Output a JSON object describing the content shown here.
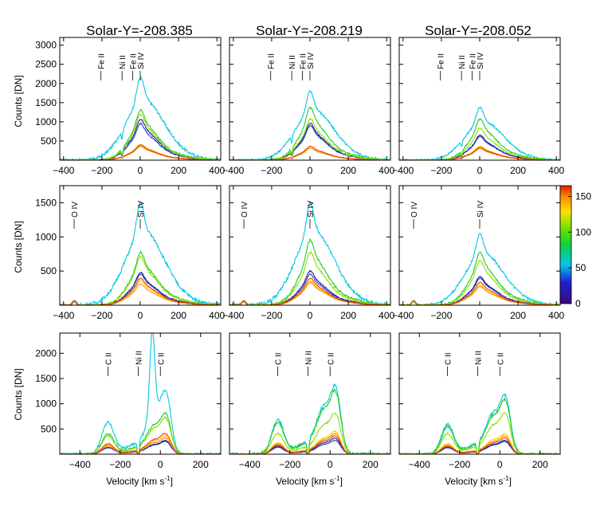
{
  "figure": {
    "column_titles": [
      "Solar-Y=-208.385",
      "Solar-Y=-208.219",
      "Solar-Y=-208.052"
    ],
    "ylabel": "Counts [DN]",
    "xlabel": "Velocity [km s",
    "xlabel_sup": "-1",
    "xlabel_end": "]",
    "colorbar": {
      "ticks": [
        "0",
        "50",
        "100",
        "150"
      ],
      "min": 0,
      "max": 165,
      "colormap": "rainbow (violet-blue-cyan-green-yellow-orange-red)"
    }
  },
  "chart_data": [
    {
      "type": "line",
      "row": 0,
      "col": 0,
      "xlim": [
        -420,
        420
      ],
      "ylim": [
        0,
        3200
      ],
      "xticks": [
        -400,
        -200,
        0,
        200,
        400
      ],
      "yticks": [
        500,
        1000,
        1500,
        2000,
        2500,
        3000
      ],
      "show_yticklabels": true,
      "line_labels": [
        {
          "text": "Fe II",
          "x": -205
        },
        {
          "text": "Ni II",
          "x": -95
        },
        {
          "text": "Fe II",
          "x": -40
        },
        {
          "text": "Si IV",
          "x": 0
        }
      ]
    },
    {
      "type": "line",
      "row": 0,
      "col": 1,
      "xlim": [
        -420,
        420
      ],
      "ylim": [
        0,
        3200
      ],
      "xticks": [
        -400,
        -200,
        0,
        200,
        400
      ],
      "yticks": [
        500,
        1000,
        1500,
        2000,
        2500,
        3000
      ],
      "show_yticklabels": false,
      "line_labels": [
        {
          "text": "Fe II",
          "x": -205
        },
        {
          "text": "Ni II",
          "x": -95
        },
        {
          "text": "Fe II",
          "x": -40
        },
        {
          "text": "Si IV",
          "x": 0
        }
      ]
    },
    {
      "type": "line",
      "row": 0,
      "col": 2,
      "xlim": [
        -420,
        420
      ],
      "ylim": [
        0,
        3200
      ],
      "xticks": [
        -400,
        -200,
        0,
        200,
        400
      ],
      "yticks": [
        500,
        1000,
        1500,
        2000,
        2500,
        3000
      ],
      "show_yticklabels": false,
      "line_labels": [
        {
          "text": "Fe II",
          "x": -205
        },
        {
          "text": "Ni II",
          "x": -95
        },
        {
          "text": "Fe II",
          "x": -40
        },
        {
          "text": "Si IV",
          "x": 0
        }
      ]
    },
    {
      "type": "line",
      "row": 1,
      "col": 0,
      "xlim": [
        -420,
        420
      ],
      "ylim": [
        0,
        1750
      ],
      "xticks": [
        -400,
        -200,
        0,
        200,
        400
      ],
      "yticks": [
        500,
        1000,
        1500
      ],
      "show_yticklabels": true,
      "line_labels": [
        {
          "text": "O IV",
          "x": -345
        },
        {
          "text": "Si IV",
          "x": 0
        }
      ]
    },
    {
      "type": "line",
      "row": 1,
      "col": 1,
      "xlim": [
        -420,
        420
      ],
      "ylim": [
        0,
        1750
      ],
      "xticks": [
        -400,
        -200,
        0,
        200,
        400
      ],
      "yticks": [
        500,
        1000,
        1500
      ],
      "show_yticklabels": false,
      "line_labels": [
        {
          "text": "O IV",
          "x": -345
        },
        {
          "text": "Si IV",
          "x": 0
        }
      ]
    },
    {
      "type": "line",
      "row": 1,
      "col": 2,
      "xlim": [
        -420,
        420
      ],
      "ylim": [
        0,
        1750
      ],
      "xticks": [
        -400,
        -200,
        0,
        200,
        400
      ],
      "yticks": [
        500,
        1000,
        1500
      ],
      "show_yticklabels": false,
      "line_labels": [
        {
          "text": "O IV",
          "x": -345
        },
        {
          "text": "Si IV",
          "x": 0
        }
      ]
    },
    {
      "type": "line",
      "row": 2,
      "col": 0,
      "xlim": [
        -500,
        300
      ],
      "ylim": [
        0,
        2400
      ],
      "xticks": [
        -400,
        -200,
        0,
        200
      ],
      "yticks": [
        500,
        1000,
        1500,
        2000
      ],
      "show_yticklabels": true,
      "line_labels": [
        {
          "text": "C II",
          "x": -260
        },
        {
          "text": "Ni II",
          "x": -110
        },
        {
          "text": "C II",
          "x": 0
        }
      ]
    },
    {
      "type": "line",
      "row": 2,
      "col": 1,
      "xlim": [
        -500,
        300
      ],
      "ylim": [
        0,
        2400
      ],
      "xticks": [
        -400,
        -200,
        0,
        200
      ],
      "yticks": [
        500,
        1000,
        1500,
        2000
      ],
      "show_yticklabels": false,
      "line_labels": [
        {
          "text": "C II",
          "x": -260
        },
        {
          "text": "Ni II",
          "x": -110
        },
        {
          "text": "C II",
          "x": 0
        }
      ]
    },
    {
      "type": "line",
      "row": 2,
      "col": 2,
      "xlim": [
        -500,
        300
      ],
      "ylim": [
        0,
        2400
      ],
      "xticks": [
        -400,
        -200,
        0,
        200
      ],
      "yticks": [
        500,
        1000,
        1500,
        2000
      ],
      "show_yticklabels": false,
      "line_labels": [
        {
          "text": "C II",
          "x": -260
        },
        {
          "text": "Ni II",
          "x": -110
        },
        {
          "text": "C II",
          "x": 0
        }
      ]
    }
  ],
  "series_colors": [
    "#2a1a8a",
    "#1c3fc7",
    "#00c8e0",
    "#22cc22",
    "#88e000",
    "#ffd000",
    "#ff8c00",
    "#e63c00"
  ]
}
